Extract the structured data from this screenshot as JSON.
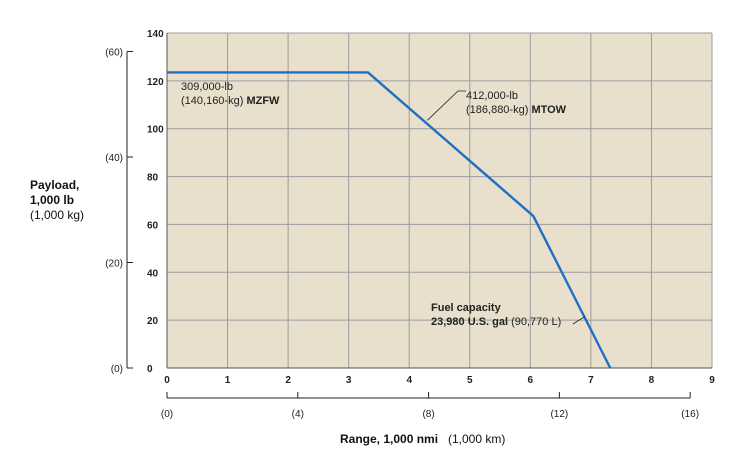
{
  "chart_data": {
    "type": "line",
    "title": "",
    "xlabel": "Range, 1,000 nmi",
    "xlabel_secondary": "(1,000 km)",
    "ylabel_lines": [
      "Payload,",
      "1,000 lb",
      "(1,000 kg)"
    ],
    "xlim": [
      0,
      9
    ],
    "ylim": [
      0,
      140
    ],
    "x_ticks": [
      0,
      1,
      2,
      3,
      4,
      5,
      6,
      7,
      8,
      9
    ],
    "y_ticks": [
      0,
      20,
      40,
      60,
      80,
      100,
      120,
      140
    ],
    "x_secondary_ticks": [
      0,
      4,
      8,
      12,
      16
    ],
    "x_secondary_labels": [
      "(0)",
      "(4)",
      "(8)",
      "(12)",
      "(16)"
    ],
    "y_secondary_ticks": [
      0,
      20,
      40,
      60
    ],
    "y_secondary_labels": [
      "(0)",
      "(20)",
      "(40)",
      "(60)"
    ],
    "grid": true,
    "background_color": "#e8e0cc",
    "grid_color": "#9c9c9c",
    "line_color": "#1f6fc5",
    "series": [
      {
        "name": "Payload-range",
        "x": [
          0,
          3.32,
          6.05,
          7.32
        ],
        "y": [
          123.5,
          123.5,
          63.5,
          0
        ]
      }
    ],
    "annotations": [
      {
        "id": "mzfw",
        "lines": [
          "309,000-lb",
          "(140,160-kg) MZFW"
        ],
        "bold_suffix": "MZFW",
        "anchor": [
          0.2,
          121
        ]
      },
      {
        "id": "mtow",
        "lines": [
          "412,000-lb",
          "(186,880-kg) MTOW"
        ],
        "bold_suffix": "MTOW",
        "anchor": [
          4.3,
          103.5
        ]
      },
      {
        "id": "fuel",
        "lines": [
          "Fuel capacity",
          "23,980 U.S. gal (90,770 L)"
        ],
        "bold_suffix": "",
        "anchor": [
          6.9,
          21.5
        ]
      }
    ]
  }
}
